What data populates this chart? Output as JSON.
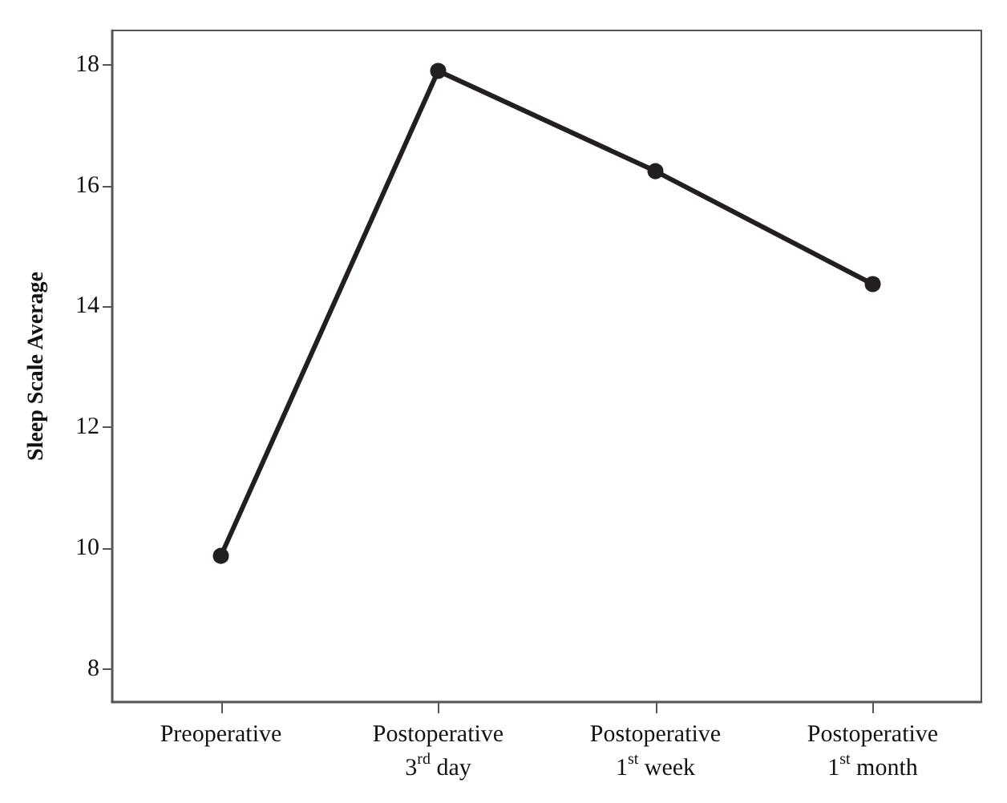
{
  "chart_data": {
    "type": "line",
    "ylabel": "Sleep Scale Average",
    "categories": [
      "Preoperative",
      "Postoperative\n3$^{rd}$ day",
      "Postoperative\n1$^{st}$ week",
      "Postoperative\n1$^{st}$ month"
    ],
    "series": [
      {
        "color": "#231f20",
        "values": [
          9.87,
          17.9,
          16.24,
          14.37
        ]
      }
    ],
    "ylim": [
      7.45,
      18.57
    ],
    "yticks": [
      8,
      10,
      12,
      14,
      16,
      18
    ],
    "grid": false,
    "marker": "circle",
    "line_style": "solid"
  }
}
